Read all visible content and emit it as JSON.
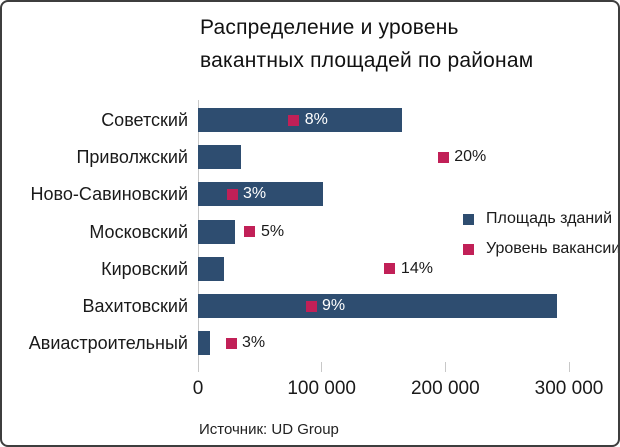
{
  "title": {
    "line1": "Распределение и уровень",
    "line2": "вакантных площадей по районам"
  },
  "source": "Источник: UD Group",
  "colors": {
    "bar": "#2e4d70",
    "marker": "#c12057",
    "axis_gray": "#c8c8c8",
    "text_dark": "#1a1a1a",
    "label_inside": "#ffffff"
  },
  "legend": {
    "items": [
      {
        "label": "Площадь зданий",
        "color": "#2e4d70"
      },
      {
        "label": "Уровень вакансии",
        "color": "#c12057"
      }
    ]
  },
  "chart_data": {
    "type": "bar",
    "orientation": "horizontal",
    "title": "Распределение и уровень вакантных площадей по районам",
    "xlabel": "",
    "ylabel": "",
    "xlim": [
      0,
      326000
    ],
    "x_ticks": [
      0,
      100000,
      200000,
      300000
    ],
    "x_tick_labels": [
      "0",
      "100 000",
      "200 000",
      "300 000"
    ],
    "grid": false,
    "legend_position": "right-middle",
    "categories": [
      "Советский",
      "Приволжский",
      "Ново-Савиновский",
      "Московский",
      "Кировский",
      "Вахитовский",
      "Авиастроительный"
    ],
    "series": [
      {
        "name": "Площадь зданий",
        "values": [
          165000,
          35000,
          101000,
          30000,
          21000,
          290000,
          10000
        ]
      },
      {
        "name": "Уровень вакансии",
        "values_percent": [
          8,
          20,
          3,
          5,
          14,
          9,
          3
        ],
        "labels": [
          "8%",
          "20%",
          "3%",
          "5%",
          "14%",
          "9%",
          "3%"
        ],
        "marker_axis_positions": [
          77400,
          198300,
          27500,
          42000,
          155200,
          91400,
          26700
        ],
        "label_inside_bar": [
          true,
          false,
          true,
          false,
          false,
          true,
          false
        ]
      }
    ]
  }
}
